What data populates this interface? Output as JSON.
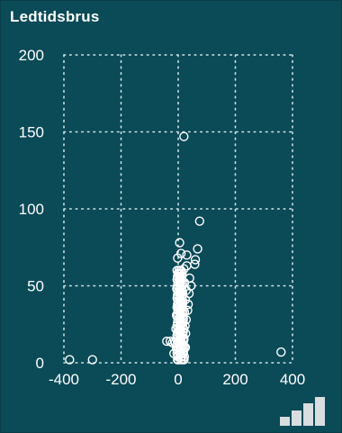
{
  "panel": {
    "title": "Ledtidsbrus"
  },
  "icons": {
    "corner": "signal-bars-icon"
  },
  "colors": {
    "background": "#0b4a57",
    "foreground": "#ffffff",
    "grid": "#cfe3e8"
  },
  "chart_data": {
    "type": "scatter",
    "title": "Ledtidsbrus",
    "xlabel": "",
    "ylabel": "",
    "xlim": [
      -400,
      400
    ],
    "ylim": [
      0,
      200
    ],
    "x_ticks": [
      -400,
      -200,
      0,
      200,
      400
    ],
    "y_ticks": [
      0,
      50,
      100,
      150,
      200
    ],
    "x_tick_labels": [
      "-400",
      "-200",
      "0",
      "200",
      "400"
    ],
    "y_tick_labels": [
      "0",
      "50",
      "100",
      "150",
      "200"
    ],
    "grid": true,
    "grid_style": "dotted",
    "legend": "none",
    "marker": "hollow-circle",
    "series": [
      {
        "values": [
          {
            "x": 20,
            "y": 147
          },
          {
            "x": 75,
            "y": 92
          },
          {
            "x": 68,
            "y": 74
          },
          {
            "x": 60,
            "y": 67
          },
          {
            "x": 58,
            "y": 64
          },
          {
            "x": 5,
            "y": 78
          },
          {
            "x": -2,
            "y": 68
          },
          {
            "x": 10,
            "y": 71
          },
          {
            "x": 30,
            "y": 70
          },
          {
            "x": 30,
            "y": 63
          },
          {
            "x": 20,
            "y": 61
          },
          {
            "x": 0,
            "y": 58
          },
          {
            "x": 8,
            "y": 55
          },
          {
            "x": 22,
            "y": 52
          },
          {
            "x": 40,
            "y": 55
          },
          {
            "x": 45,
            "y": 50
          },
          {
            "x": -5,
            "y": 48
          },
          {
            "x": 5,
            "y": 46
          },
          {
            "x": 15,
            "y": 44
          },
          {
            "x": 28,
            "y": 47
          },
          {
            "x": 38,
            "y": 45
          },
          {
            "x": -3,
            "y": 42
          },
          {
            "x": 10,
            "y": 40
          },
          {
            "x": 25,
            "y": 41
          },
          {
            "x": 35,
            "y": 38
          },
          {
            "x": 0,
            "y": 36
          },
          {
            "x": 12,
            "y": 35
          },
          {
            "x": 22,
            "y": 33
          },
          {
            "x": 33,
            "y": 34
          },
          {
            "x": -6,
            "y": 31
          },
          {
            "x": 5,
            "y": 30
          },
          {
            "x": 18,
            "y": 29
          },
          {
            "x": 28,
            "y": 28
          },
          {
            "x": -2,
            "y": 26
          },
          {
            "x": 10,
            "y": 25
          },
          {
            "x": 24,
            "y": 24
          },
          {
            "x": -8,
            "y": 22
          },
          {
            "x": 4,
            "y": 21
          },
          {
            "x": 16,
            "y": 20
          },
          {
            "x": 26,
            "y": 19
          },
          {
            "x": -4,
            "y": 17
          },
          {
            "x": 8,
            "y": 16
          },
          {
            "x": 20,
            "y": 15
          },
          {
            "x": -10,
            "y": 13
          },
          {
            "x": 2,
            "y": 12
          },
          {
            "x": 14,
            "y": 11
          },
          {
            "x": -6,
            "y": 9
          },
          {
            "x": 6,
            "y": 8
          },
          {
            "x": 18,
            "y": 7
          },
          {
            "x": -2,
            "y": 5
          },
          {
            "x": 10,
            "y": 4
          },
          {
            "x": 0,
            "y": 2
          },
          {
            "x": -40,
            "y": 14
          },
          {
            "x": -28,
            "y": 14
          },
          {
            "x": -20,
            "y": 13
          },
          {
            "x": 25,
            "y": 10
          },
          {
            "x": -15,
            "y": 6
          },
          {
            "x": 15,
            "y": 2
          },
          {
            "x": -380,
            "y": 2
          },
          {
            "x": -300,
            "y": 2
          },
          {
            "x": 360,
            "y": 7
          }
        ]
      }
    ]
  }
}
